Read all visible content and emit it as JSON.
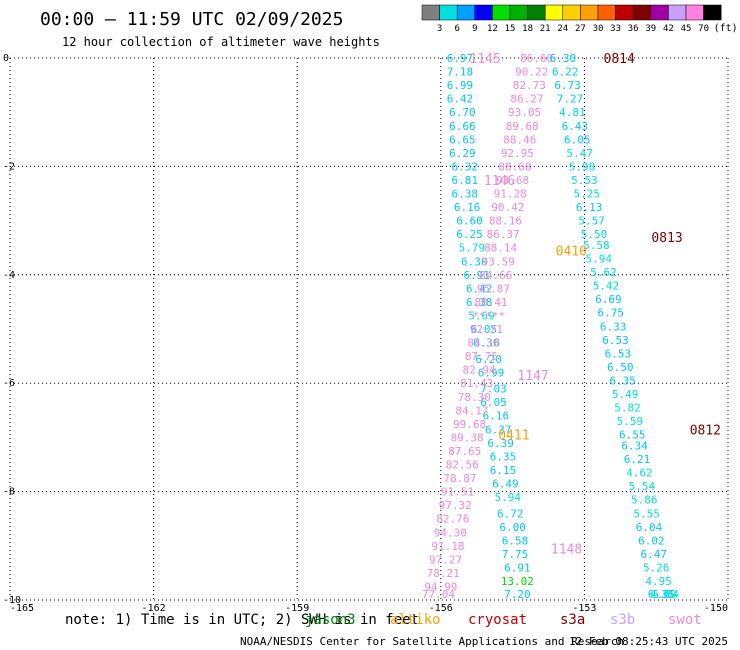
{
  "chart_data": {
    "type": "scatter",
    "title": "00:00 – 11:59 UTC 02/09/2025",
    "subtitle": "12 hour collection of altimeter wave heights",
    "x_ticks": [
      "-165",
      "-162",
      "-159",
      "-156",
      "-153",
      "-150"
    ],
    "y_ticks": [
      "0",
      "-2",
      "-4",
      "-6",
      "-8",
      "-10"
    ],
    "xlim": [
      -165,
      -150
    ],
    "ylim": [
      -10,
      0
    ],
    "grid": true,
    "colorbar": {
      "unit": "(ft)",
      "labels": [
        "3",
        "6",
        "9",
        "12",
        "15",
        "18",
        "21",
        "24",
        "27",
        "30",
        "33",
        "36",
        "39",
        "42",
        "45",
        "70"
      ],
      "colors": [
        "#7f7f7f",
        "#00e0e0",
        "#00a0ff",
        "#0000ff",
        "#00e000",
        "#00b000",
        "#008000",
        "#ffff00",
        "#ffd000",
        "#ffa000",
        "#ff6000",
        "#c00000",
        "#800000",
        "#a000a0",
        "#c8a0ff",
        "#ff80e0",
        "#000000"
      ]
    },
    "pass_labels": [
      {
        "text": "1145",
        "x": -155.4,
        "y": 0.0,
        "color": "#ee88dd"
      },
      {
        "text": "0814",
        "x": -152.6,
        "y": 0.0,
        "color": "#800000"
      },
      {
        "text": "1146",
        "x": -155.1,
        "y": -2.25,
        "color": "#ee88dd"
      },
      {
        "text": "0410",
        "x": -153.6,
        "y": -3.55,
        "color": "#ffa000"
      },
      {
        "text": "0813",
        "x": -151.6,
        "y": -3.3,
        "color": "#800000"
      },
      {
        "text": "1147",
        "x": -154.4,
        "y": -5.85,
        "color": "#ee88dd"
      },
      {
        "text": "0411",
        "x": -154.8,
        "y": -6.95,
        "color": "#ffa000"
      },
      {
        "text": "0812",
        "x": -150.8,
        "y": -6.85,
        "color": "#800000"
      },
      {
        "text": "1148",
        "x": -153.7,
        "y": -9.05,
        "color": "#ee88dd"
      }
    ],
    "tracks": [
      {
        "values": [
          {
            "x": -155.6,
            "y": 0.0,
            "v": "6.97",
            "color": "#00c8ff"
          },
          {
            "x": -155.6,
            "y": -0.25,
            "v": "7.18",
            "color": "#00c8ff"
          },
          {
            "x": -155.6,
            "y": -0.5,
            "v": "6.99",
            "color": "#00c8ff"
          },
          {
            "x": -155.6,
            "y": -0.75,
            "v": "6.42",
            "color": "#00c8ff"
          },
          {
            "x": -155.55,
            "y": -1.0,
            "v": "6.70",
            "color": "#00c8ff"
          },
          {
            "x": -155.55,
            "y": -1.25,
            "v": "6.66",
            "color": "#00c8ff"
          },
          {
            "x": -155.55,
            "y": -1.5,
            "v": "6.65",
            "color": "#00c8ff"
          },
          {
            "x": -155.55,
            "y": -1.75,
            "v": "6.29",
            "color": "#00c8ff"
          },
          {
            "x": -155.5,
            "y": -2.0,
            "v": "6.32",
            "color": "#00c8ff"
          },
          {
            "x": -155.5,
            "y": -2.25,
            "v": "6.81",
            "color": "#00c8ff"
          },
          {
            "x": -155.5,
            "y": -2.5,
            "v": "6.38",
            "color": "#00c8ff"
          },
          {
            "x": -155.45,
            "y": -2.75,
            "v": "6.16",
            "color": "#00c8ff"
          },
          {
            "x": -155.4,
            "y": -3.0,
            "v": "6.60",
            "color": "#00c8ff"
          },
          {
            "x": -155.4,
            "y": -3.25,
            "v": "6.25",
            "color": "#00c8ff"
          },
          {
            "x": -155.35,
            "y": -3.5,
            "v": "5.79",
            "color": "#00e0e0"
          },
          {
            "x": -155.3,
            "y": -3.75,
            "v": "6.30",
            "color": "#00c8ff"
          },
          {
            "x": -155.25,
            "y": -4.0,
            "v": "6.91",
            "color": "#00c8ff"
          },
          {
            "x": -155.2,
            "y": -4.25,
            "v": "6.42",
            "color": "#00c8ff"
          },
          {
            "x": -155.2,
            "y": -4.5,
            "v": "6.38",
            "color": "#00c8ff"
          },
          {
            "x": -155.15,
            "y": -4.75,
            "v": "5.69",
            "color": "#00e0e0"
          },
          {
            "x": -155.1,
            "y": -5.0,
            "v": "6.05",
            "color": "#00c8ff"
          },
          {
            "x": -155.05,
            "y": -5.25,
            "v": "6.30",
            "color": "#00c8ff"
          },
          {
            "x": -155.0,
            "y": -5.55,
            "v": "6.20",
            "color": "#00c8ff"
          },
          {
            "x": -154.95,
            "y": -5.8,
            "v": "6.99",
            "color": "#00c8ff"
          },
          {
            "x": -154.9,
            "y": -6.1,
            "v": "7.03",
            "color": "#00c8ff"
          },
          {
            "x": -154.9,
            "y": -6.35,
            "v": "6.05",
            "color": "#00c8ff"
          },
          {
            "x": -154.85,
            "y": -6.6,
            "v": "6.16",
            "color": "#00c8ff"
          },
          {
            "x": -154.8,
            "y": -6.85,
            "v": "6.37",
            "color": "#00c8ff"
          },
          {
            "x": -154.75,
            "y": -7.1,
            "v": "6.39",
            "color": "#00c8ff"
          },
          {
            "x": -154.7,
            "y": -7.35,
            "v": "6.35",
            "color": "#00c8ff"
          },
          {
            "x": -154.7,
            "y": -7.6,
            "v": "6.15",
            "color": "#00c8ff"
          },
          {
            "x": -154.65,
            "y": -7.85,
            "v": "6.49",
            "color": "#00c8ff"
          },
          {
            "x": -154.6,
            "y": -8.1,
            "v": "5.94",
            "color": "#00e0e0"
          },
          {
            "x": -154.55,
            "y": -8.4,
            "v": "6.72",
            "color": "#00c8ff"
          },
          {
            "x": -154.5,
            "y": -8.65,
            "v": "6.00",
            "color": "#00c8ff"
          },
          {
            "x": -154.45,
            "y": -8.9,
            "v": "6.58",
            "color": "#00c8ff"
          },
          {
            "x": -154.45,
            "y": -9.15,
            "v": "7.75",
            "color": "#00c8ff"
          },
          {
            "x": -154.4,
            "y": -9.4,
            "v": "6.91",
            "color": "#00c8ff"
          },
          {
            "x": -154.4,
            "y": -9.65,
            "v": "13.02",
            "color": "#00e000"
          },
          {
            "x": -154.4,
            "y": -9.9,
            "v": "7.20",
            "color": "#00c8ff"
          }
        ]
      },
      {
        "values": [
          {
            "x": -154.0,
            "y": 0.0,
            "v": "86.60",
            "color": "#ee88dd"
          },
          {
            "x": -154.1,
            "y": -0.25,
            "v": "90.22",
            "color": "#ee88dd"
          },
          {
            "x": -154.15,
            "y": -0.5,
            "v": "82.73",
            "color": "#ee88dd"
          },
          {
            "x": -154.2,
            "y": -0.75,
            "v": "86.27",
            "color": "#ee88dd"
          },
          {
            "x": -154.25,
            "y": -1.0,
            "v": "93.05",
            "color": "#ee88dd"
          },
          {
            "x": -154.3,
            "y": -1.25,
            "v": "89.68",
            "color": "#ee88dd"
          },
          {
            "x": -154.35,
            "y": -1.5,
            "v": "88.46",
            "color": "#ee88dd"
          },
          {
            "x": -154.4,
            "y": -1.75,
            "v": "92.95",
            "color": "#ee88dd"
          },
          {
            "x": -154.45,
            "y": -2.0,
            "v": "88.68",
            "color": "#ee88dd"
          },
          {
            "x": -154.5,
            "y": -2.25,
            "v": "93.68",
            "color": "#ee88dd"
          },
          {
            "x": -154.55,
            "y": -2.5,
            "v": "91.28",
            "color": "#ee88dd"
          },
          {
            "x": -154.6,
            "y": -2.75,
            "v": "90.42",
            "color": "#ee88dd"
          },
          {
            "x": -154.65,
            "y": -3.0,
            "v": "88.16",
            "color": "#ee88dd"
          },
          {
            "x": -154.7,
            "y": -3.25,
            "v": "86.37",
            "color": "#ee88dd"
          },
          {
            "x": -154.75,
            "y": -3.5,
            "v": "88.14",
            "color": "#ee88dd"
          },
          {
            "x": -154.8,
            "y": -3.75,
            "v": "93.59",
            "color": "#ee88dd"
          },
          {
            "x": -154.85,
            "y": -4.0,
            "v": "84.66",
            "color": "#ee88dd"
          },
          {
            "x": -154.9,
            "y": -4.25,
            "v": "95.87",
            "color": "#ee88dd"
          },
          {
            "x": -154.95,
            "y": -4.5,
            "v": "88.41",
            "color": "#ee88dd"
          },
          {
            "x": -155.0,
            "y": -4.75,
            "v": "*****",
            "color": "#ee88dd"
          },
          {
            "x": -155.05,
            "y": -5.0,
            "v": "92.21",
            "color": "#ee88dd"
          },
          {
            "x": -155.1,
            "y": -5.25,
            "v": "84.16",
            "color": "#ee88dd"
          },
          {
            "x": -155.15,
            "y": -5.5,
            "v": "87.75",
            "color": "#ee88dd"
          },
          {
            "x": -155.2,
            "y": -5.75,
            "v": "82.94",
            "color": "#ee88dd"
          },
          {
            "x": -155.25,
            "y": -6.0,
            "v": "81.43",
            "color": "#ee88dd"
          },
          {
            "x": -155.3,
            "y": -6.25,
            "v": "78.30",
            "color": "#ee88dd"
          },
          {
            "x": -155.35,
            "y": -6.5,
            "v": "84.17",
            "color": "#ee88dd"
          },
          {
            "x": -155.4,
            "y": -6.75,
            "v": "99.68",
            "color": "#ee88dd"
          },
          {
            "x": -155.45,
            "y": -7.0,
            "v": "89.38",
            "color": "#ee88dd"
          },
          {
            "x": -155.5,
            "y": -7.25,
            "v": "87.65",
            "color": "#ee88dd"
          },
          {
            "x": -155.55,
            "y": -7.5,
            "v": "82.56",
            "color": "#ee88dd"
          },
          {
            "x": -155.6,
            "y": -7.75,
            "v": "78.87",
            "color": "#ee88dd"
          },
          {
            "x": -155.65,
            "y": -8.0,
            "v": "91.51",
            "color": "#ee88dd"
          },
          {
            "x": -155.7,
            "y": -8.25,
            "v": "97.32",
            "color": "#ee88dd"
          },
          {
            "x": -155.75,
            "y": -8.5,
            "v": "82.76",
            "color": "#ee88dd"
          },
          {
            "x": -155.8,
            "y": -8.75,
            "v": "94.30",
            "color": "#ee88dd"
          },
          {
            "x": -155.85,
            "y": -9.0,
            "v": "91.18",
            "color": "#ee88dd"
          },
          {
            "x": -155.9,
            "y": -9.25,
            "v": "97.27",
            "color": "#ee88dd"
          },
          {
            "x": -155.95,
            "y": -9.5,
            "v": "78.21",
            "color": "#ee88dd"
          },
          {
            "x": -156.0,
            "y": -9.75,
            "v": "94.99",
            "color": "#ee88dd"
          },
          {
            "x": -156.05,
            "y": -10.0,
            "v": "77.04",
            "color": "#ee88dd"
          }
        ]
      },
      {
        "values": [
          {
            "x": -153.45,
            "y": 0.0,
            "v": "6.30",
            "color": "#00c8ff"
          },
          {
            "x": -153.4,
            "y": -0.25,
            "v": "6.22",
            "color": "#00c8ff"
          },
          {
            "x": -153.35,
            "y": -0.5,
            "v": "6.73",
            "color": "#00c8ff"
          },
          {
            "x": -153.3,
            "y": -0.75,
            "v": "7.27",
            "color": "#00c8ff"
          },
          {
            "x": -153.25,
            "y": -1.0,
            "v": "4.81",
            "color": "#00e0e0"
          },
          {
            "x": -153.2,
            "y": -1.25,
            "v": "6.43",
            "color": "#00c8ff"
          },
          {
            "x": -153.15,
            "y": -1.5,
            "v": "6.05",
            "color": "#00c8ff"
          },
          {
            "x": -153.1,
            "y": -1.75,
            "v": "5.47",
            "color": "#00e0e0"
          },
          {
            "x": -153.05,
            "y": -2.0,
            "v": "5.98",
            "color": "#00e0e0"
          },
          {
            "x": -153.0,
            "y": -2.25,
            "v": "5.53",
            "color": "#00e0e0"
          },
          {
            "x": -152.95,
            "y": -2.5,
            "v": "5.25",
            "color": "#00e0e0"
          },
          {
            "x": -152.9,
            "y": -2.75,
            "v": "6.13",
            "color": "#00c8ff"
          },
          {
            "x": -152.85,
            "y": -3.0,
            "v": "5.57",
            "color": "#00e0e0"
          },
          {
            "x": -152.8,
            "y": -3.25,
            "v": "5.50",
            "color": "#00e0e0"
          },
          {
            "x": -152.75,
            "y": -3.45,
            "v": "5.58",
            "color": "#00e0e0"
          },
          {
            "x": -152.7,
            "y": -3.7,
            "v": "5.94",
            "color": "#00e0e0"
          },
          {
            "x": -152.6,
            "y": -3.95,
            "v": "5.62",
            "color": "#00e0e0"
          },
          {
            "x": -152.55,
            "y": -4.2,
            "v": "5.42",
            "color": "#00e0e0"
          },
          {
            "x": -152.5,
            "y": -4.45,
            "v": "6.69",
            "color": "#00c8ff"
          },
          {
            "x": -152.45,
            "y": -4.7,
            "v": "6.75",
            "color": "#00c8ff"
          },
          {
            "x": -152.4,
            "y": -4.95,
            "v": "6.33",
            "color": "#00c8ff"
          },
          {
            "x": -152.35,
            "y": -5.2,
            "v": "6.53",
            "color": "#00c8ff"
          },
          {
            "x": -152.3,
            "y": -5.45,
            "v": "6.53",
            "color": "#00c8ff"
          },
          {
            "x": -152.25,
            "y": -5.7,
            "v": "6.50",
            "color": "#00c8ff"
          },
          {
            "x": -152.2,
            "y": -5.95,
            "v": "6.35",
            "color": "#00c8ff"
          },
          {
            "x": -152.15,
            "y": -6.2,
            "v": "5.49",
            "color": "#00e0e0"
          },
          {
            "x": -152.1,
            "y": -6.45,
            "v": "5.82",
            "color": "#00e0e0"
          },
          {
            "x": -152.05,
            "y": -6.7,
            "v": "5.59",
            "color": "#00e0e0"
          },
          {
            "x": -152.0,
            "y": -6.95,
            "v": "6.55",
            "color": "#00c8ff"
          },
          {
            "x": -151.95,
            "y": -7.15,
            "v": "6.34",
            "color": "#00c8ff"
          },
          {
            "x": -151.9,
            "y": -7.4,
            "v": "6.21",
            "color": "#00c8ff"
          },
          {
            "x": -151.85,
            "y": -7.65,
            "v": "4.62",
            "color": "#00e0e0"
          },
          {
            "x": -151.8,
            "y": -7.9,
            "v": "5.54",
            "color": "#00e0e0"
          },
          {
            "x": -151.75,
            "y": -8.15,
            "v": "5.86",
            "color": "#00e0e0"
          },
          {
            "x": -151.7,
            "y": -8.4,
            "v": "5.55",
            "color": "#00e0e0"
          },
          {
            "x": -151.65,
            "y": -8.65,
            "v": "6.04",
            "color": "#00c8ff"
          },
          {
            "x": -151.6,
            "y": -8.9,
            "v": "6.02",
            "color": "#00c8ff"
          },
          {
            "x": -151.55,
            "y": -9.15,
            "v": "6.47",
            "color": "#00c8ff"
          },
          {
            "x": -151.5,
            "y": -9.4,
            "v": "5.26",
            "color": "#00e0e0"
          },
          {
            "x": -151.45,
            "y": -9.65,
            "v": "4.95",
            "color": "#00e0e0"
          },
          {
            "x": -151.4,
            "y": -9.9,
            "v": "6.35",
            "color": "#00c8ff"
          },
          {
            "x": -151.35,
            "y": -10.15,
            "v": "4.69",
            "color": "#00e0e0"
          },
          {
            "x": -151.3,
            "y": -10.4,
            "v": "5.04",
            "color": "#00e0e0"
          }
        ]
      }
    ]
  },
  "note": {
    "text": "note: 1) Time is in UTC; 2) SWH is in feet",
    "satellites": [
      {
        "name": "jason3",
        "color": "#008000"
      },
      {
        "name": "altiko",
        "color": "#ffa000"
      },
      {
        "name": "cryosat",
        "color": "#c00000"
      },
      {
        "name": "s3a",
        "color": "#800000"
      },
      {
        "name": "s3b",
        "color": "#c8a0ff"
      },
      {
        "name": "swot",
        "color": "#ee88dd"
      }
    ]
  },
  "footer": {
    "credit": "NOAA/NESDIS Center for Satellite Applications and Research",
    "timestamp": "12 Feb 08:25:43 UTC 2025"
  }
}
